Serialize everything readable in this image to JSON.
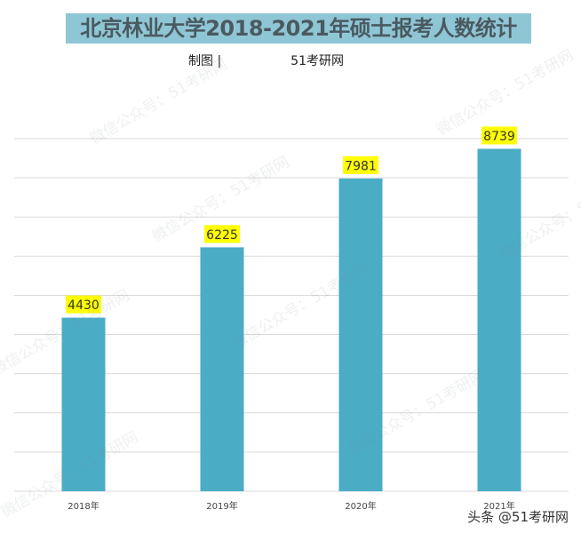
{
  "title": "北京林业大学2018-2021年硕士报考人数统计",
  "subtitle_prefix": "制图 |",
  "subtitle_source": "51考研网",
  "watermark": "微信公众号：51考研网",
  "footer": "头条 @51考研网",
  "colors": {
    "bar": "#4bacc6",
    "label_bg": "#ffff00",
    "title_bg": "#8fc6d6",
    "grid": "#d9d9d9"
  },
  "chart_data": {
    "type": "bar",
    "title": "北京林业大学2018-2021年硕士报考人数统计",
    "categories": [
      "2018年",
      "2019年",
      "2020年",
      "2021年"
    ],
    "values": [
      4430,
      6225,
      7981,
      8739
    ],
    "ylim": [
      0,
      9000
    ],
    "ytick_step": 1000,
    "y_tick_labels_shown": false,
    "grid": true,
    "data_labels": true
  }
}
